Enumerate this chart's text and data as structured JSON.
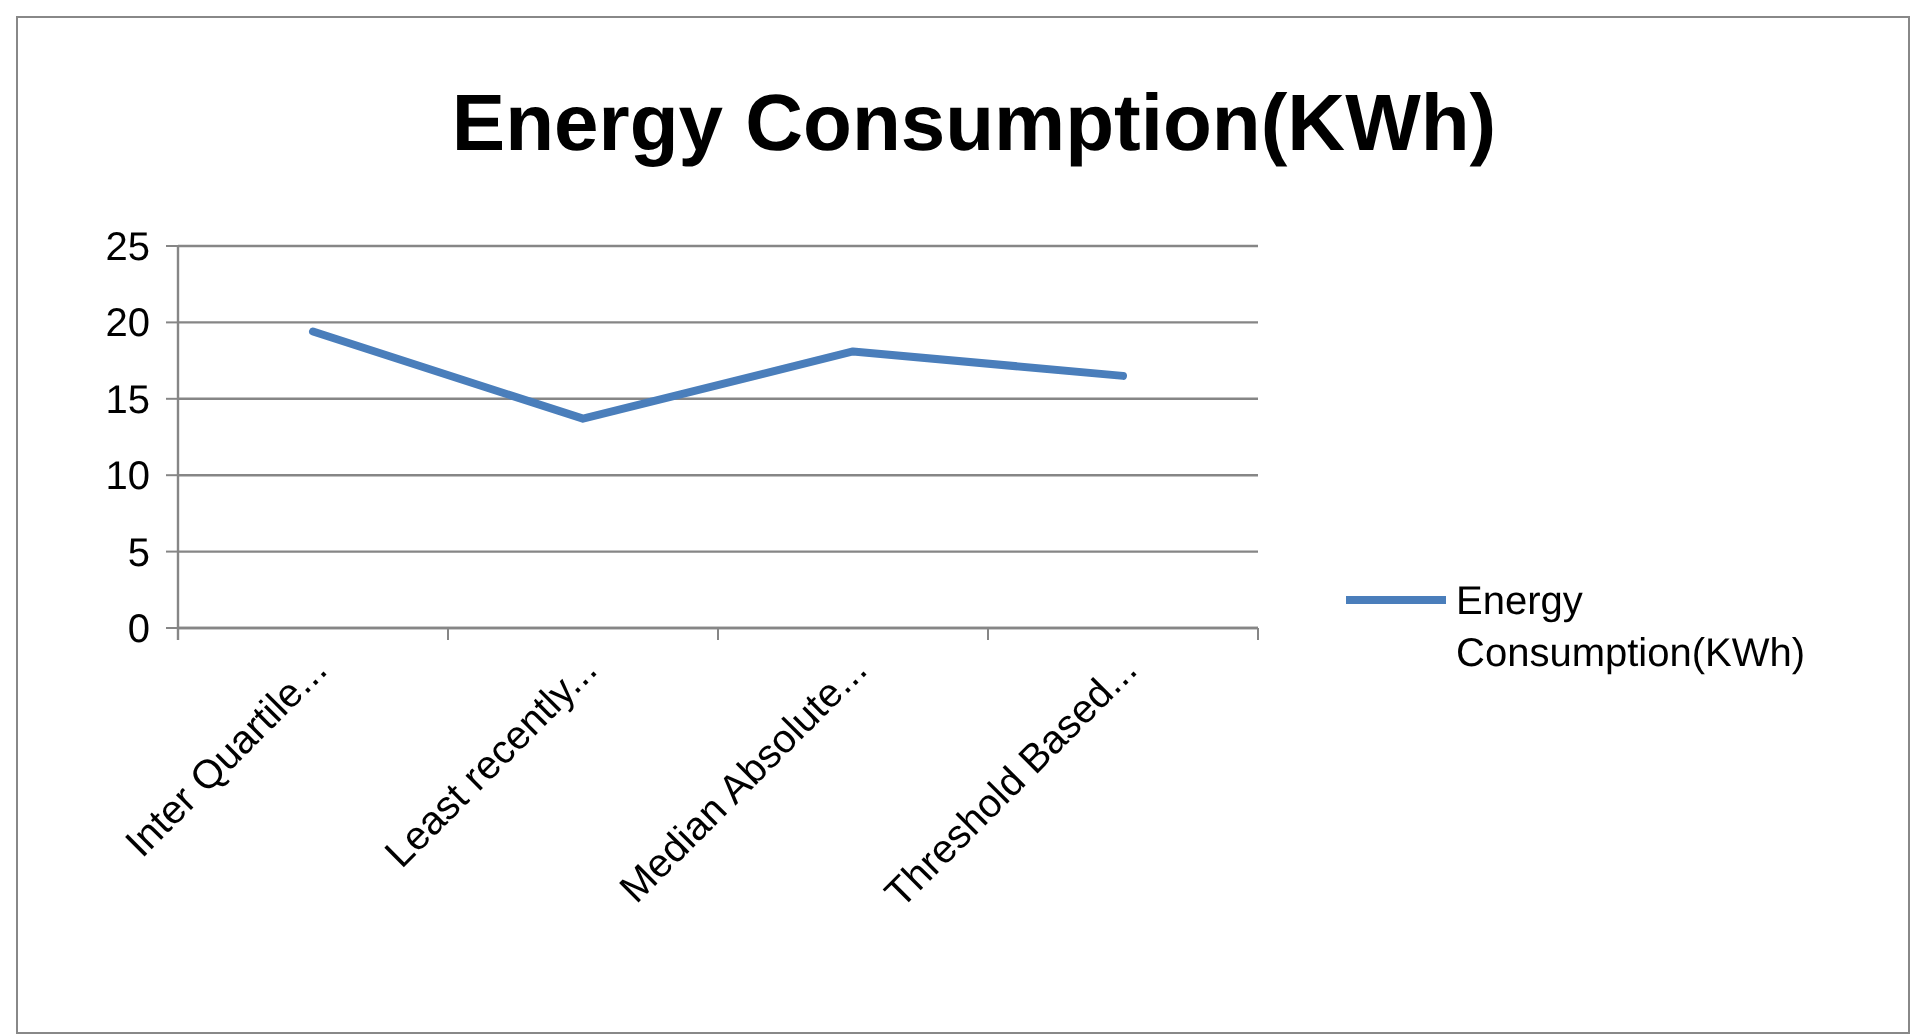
{
  "chart_data": {
    "type": "line",
    "title": "Energy Consumption(KWh)",
    "categories": [
      "Inter Quartile...",
      "Least recently...",
      "Median Absolute...",
      "Threshold Based..."
    ],
    "series": [
      {
        "name": "Energy Consumption(KWh)",
        "color": "#4a7ebb",
        "values": [
          19.4,
          13.7,
          18.1,
          16.5
        ]
      }
    ],
    "ylim": [
      0,
      25
    ],
    "yticks": [
      0,
      5,
      10,
      15,
      20,
      25
    ],
    "grid": "y",
    "legend": "right",
    "marker": "none",
    "line_style": "solid"
  }
}
